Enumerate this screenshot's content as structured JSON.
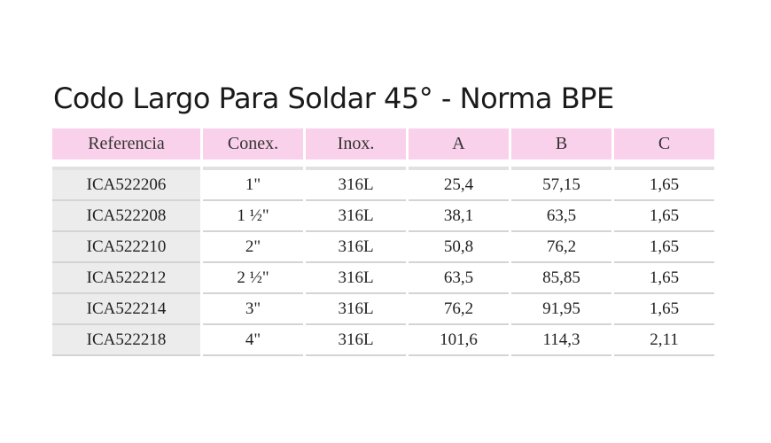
{
  "title": "Codo Largo Para Soldar 45° - Norma BPE",
  "table": {
    "headers": [
      "Referencia",
      "Conex.",
      "Inox.",
      "A",
      "B",
      "C"
    ],
    "rows": [
      [
        "ICA522206",
        "1\"",
        "316L",
        "25,4",
        "57,15",
        "1,65"
      ],
      [
        "ICA522208",
        "1 ½\"",
        "316L",
        "38,1",
        "63,5",
        "1,65"
      ],
      [
        "ICA522210",
        "2\"",
        "316L",
        "50,8",
        "76,2",
        "1,65"
      ],
      [
        "ICA522212",
        "2 ½\"",
        "316L",
        "63,5",
        "85,85",
        "1,65"
      ],
      [
        "ICA522214",
        "3\"",
        "316L",
        "76,2",
        "91,95",
        "1,65"
      ],
      [
        "ICA522218",
        "4\"",
        "316L",
        "101,6",
        "114,3",
        "2,11"
      ]
    ]
  },
  "colors": {
    "header_background": "#fad1ea",
    "reference_column_background": "#ececec",
    "row_divider": "#d4d4d4"
  }
}
